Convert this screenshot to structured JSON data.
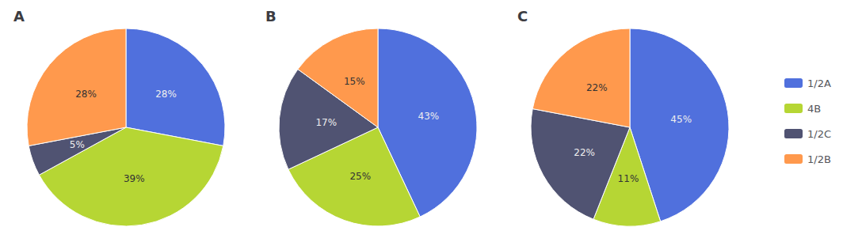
{
  "chart_data": [
    {
      "type": "pie",
      "title": "A",
      "categories": [
        "1/2A",
        "4B",
        "1/2C",
        "1/2B"
      ],
      "values": [
        28,
        39,
        5,
        28
      ],
      "value_labels": [
        "28%",
        "39%",
        "5%",
        "28%"
      ],
      "data_labels": true,
      "legend": "right"
    },
    {
      "type": "pie",
      "title": "B",
      "categories": [
        "1/2A",
        "4B",
        "1/2C",
        "1/2B"
      ],
      "values": [
        43,
        25,
        17,
        15
      ],
      "value_labels": [
        "43%",
        "25%",
        "17%",
        "15%"
      ],
      "data_labels": true,
      "legend": "right"
    },
    {
      "type": "pie",
      "title": "C",
      "categories": [
        "1/2A",
        "4B",
        "1/2C",
        "1/2B"
      ],
      "values": [
        45,
        11,
        22,
        22
      ],
      "value_labels": [
        "45%",
        "11%",
        "22%",
        "22%"
      ],
      "data_labels": true,
      "legend": "right"
    }
  ]
}
